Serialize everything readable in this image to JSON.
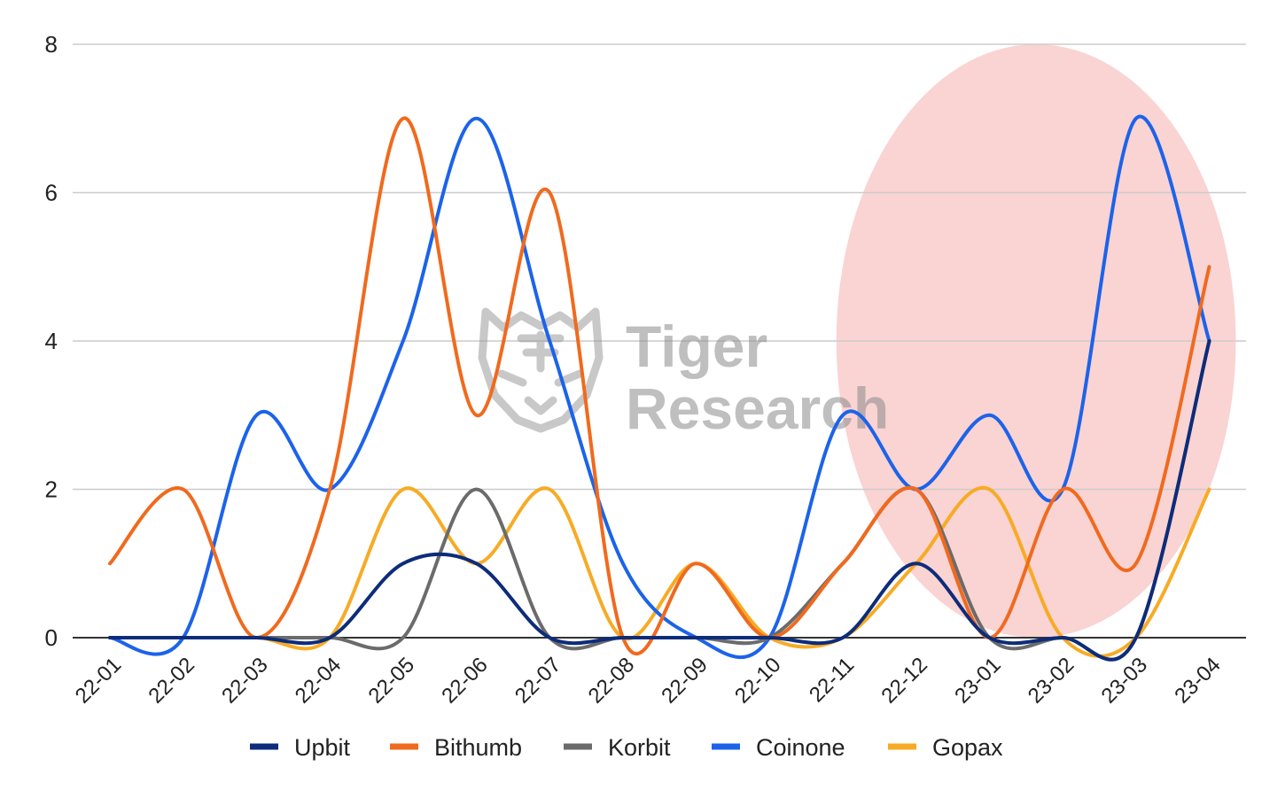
{
  "chart_data": {
    "type": "line",
    "title": "",
    "xlabel": "",
    "ylabel": "",
    "categories": [
      "22-01",
      "22-02",
      "22-03",
      "22-04",
      "22-05",
      "22-06",
      "22-07",
      "22-08",
      "22-09",
      "22-10",
      "22-11",
      "22-12",
      "23-01",
      "23-02",
      "23-03",
      "23-04"
    ],
    "ylim": [
      0,
      8
    ],
    "yticks": [
      0,
      2,
      4,
      6,
      8
    ],
    "grid": true,
    "legend_position": "bottom",
    "series": [
      {
        "name": "Upbit",
        "color": "#0d2c7a",
        "values": [
          0,
          0,
          0,
          0,
          1,
          1,
          0,
          0,
          0,
          0,
          0,
          1,
          0,
          0,
          0,
          4
        ]
      },
      {
        "name": "Bithumb",
        "color": "#f06a1e",
        "values": [
          1,
          2,
          0,
          2,
          7,
          3,
          6,
          0,
          1,
          0,
          1,
          2,
          0,
          2,
          1,
          5
        ]
      },
      {
        "name": "Korbit",
        "color": "#6b6b6b",
        "values": [
          0,
          0,
          0,
          0,
          0,
          2,
          0,
          0,
          0,
          0,
          1,
          2,
          0,
          0,
          0,
          4
        ]
      },
      {
        "name": "Coinone",
        "color": "#1c63ea",
        "values": [
          0,
          0,
          3,
          2,
          4,
          7,
          4,
          1,
          0,
          0,
          3,
          2,
          3,
          2,
          7,
          4
        ]
      },
      {
        "name": "Gopax",
        "color": "#f7ab25",
        "values": [
          0,
          0,
          0,
          0,
          2,
          1,
          2,
          0,
          1,
          0,
          0,
          1,
          2,
          0,
          0,
          2
        ]
      }
    ],
    "highlight": {
      "shape": "ellipse",
      "color": "#f6a8a8",
      "covers_categories": [
        "22-12",
        "23-04"
      ]
    },
    "watermark": {
      "line1": "Tiger",
      "line2": "Research",
      "icon": "tiger-head-icon"
    }
  }
}
